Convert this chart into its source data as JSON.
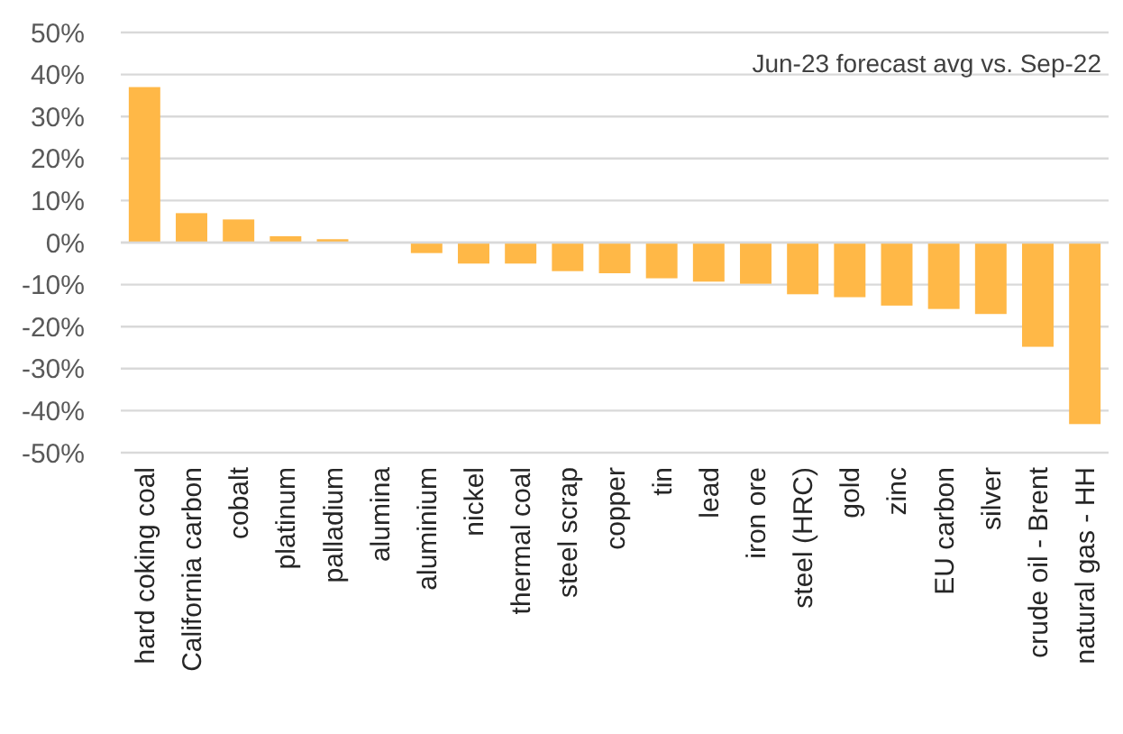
{
  "chart_data": {
    "type": "bar",
    "annotations": [
      "Jun-23 forecast avg vs. Sep-22"
    ],
    "categories": [
      "hard coking coal",
      "California carbon",
      "cobalt",
      "platinum",
      "palladium",
      "alumina",
      "aluminium",
      "nickel",
      "thermal coal",
      "steel scrap",
      "copper",
      "tin",
      "lead",
      "iron ore",
      "steel (HRC)",
      "gold",
      "zinc",
      "EU carbon",
      "silver",
      "crude oil - Brent",
      "natural gas - HH"
    ],
    "values": [
      37,
      7,
      5.5,
      1.5,
      0.8,
      0,
      -2.5,
      -5,
      -5,
      -6.8,
      -7.3,
      -8.5,
      -9.3,
      -9.8,
      -12.3,
      -13,
      -15,
      -15.8,
      -17,
      -24.8,
      -43.2
    ],
    "color": "#ffb847",
    "ylim": [
      -50,
      50
    ],
    "yticks": [
      {
        "value": -50,
        "label": "-50%"
      },
      {
        "value": -40,
        "label": "-40%"
      },
      {
        "value": -30,
        "label": "-30%"
      },
      {
        "value": -20,
        "label": "-20%"
      },
      {
        "value": -10,
        "label": "-10%"
      },
      {
        "value": 0,
        "label": "0%"
      },
      {
        "value": 10,
        "label": "10%"
      },
      {
        "value": 20,
        "label": "20%"
      },
      {
        "value": 30,
        "label": "30%"
      },
      {
        "value": 40,
        "label": "40%"
      },
      {
        "value": 50,
        "label": "50%"
      }
    ],
    "grid": "y"
  }
}
